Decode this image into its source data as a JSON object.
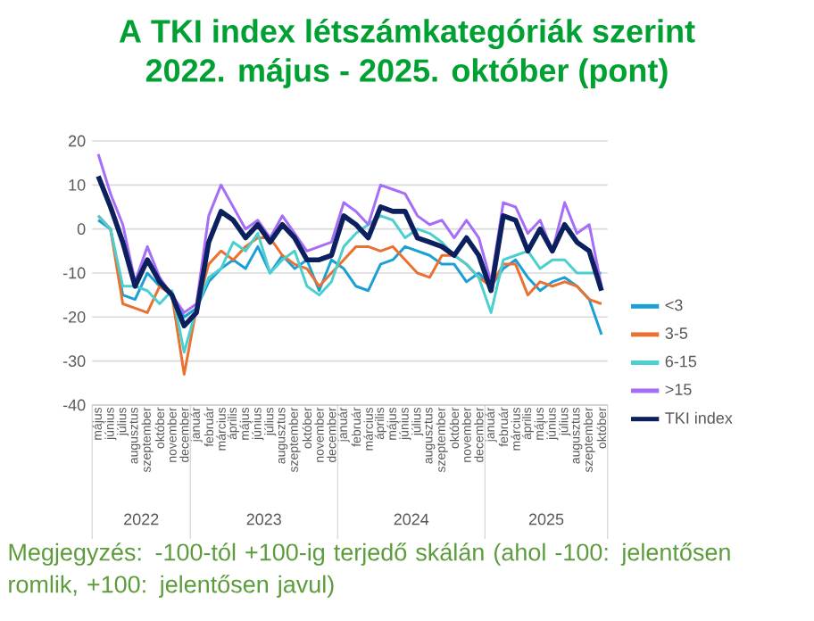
{
  "chart_data": {
    "type": "line",
    "title": "A TKI index létszámkategóriák szerint",
    "subtitle": "2022. május - 2025. október (pont)",
    "categories": [
      "május",
      "június",
      "július",
      "augusztus",
      "szeptember",
      "október",
      "november",
      "december",
      "január",
      "február",
      "március",
      "április",
      "május",
      "június",
      "július",
      "augusztus",
      "szeptember",
      "október",
      "november",
      "december",
      "január",
      "február",
      "március",
      "április",
      "május",
      "június",
      "július",
      "augusztus",
      "szeptember",
      "október",
      "november",
      "december",
      "január",
      "február",
      "március",
      "április",
      "május",
      "június",
      "július",
      "augusztus",
      "szeptember",
      "október"
    ],
    "series": [
      {
        "name": "<3",
        "color": "#1c9fd6",
        "values": [
          2,
          0,
          -15,
          -16,
          -10,
          -13,
          -15,
          -20,
          -18,
          -12,
          -9,
          -7,
          -9,
          -4,
          -10,
          -6,
          -9,
          -7,
          -14,
          -7,
          -9,
          -13,
          -14,
          -8,
          -7,
          -4,
          -5,
          -6,
          -8,
          -8,
          -12,
          -10,
          -13,
          -9,
          -7,
          -11,
          -14,
          -12,
          -11,
          -13,
          -16,
          -24
        ]
      },
      {
        "name": "3-5",
        "color": "#e97132",
        "values": [
          3,
          0,
          -17,
          -18,
          -19,
          -13,
          -15,
          -33,
          -18,
          -8,
          -5,
          -7,
          -4,
          -2,
          -2,
          -6,
          -8,
          -9,
          -13,
          -10,
          -7,
          -4,
          -4,
          -5,
          -4,
          -7,
          -10,
          -11,
          -6,
          -6,
          -8,
          -11,
          -13,
          -8,
          -8,
          -15,
          -12,
          -13,
          -12,
          -13,
          -16,
          -17
        ]
      },
      {
        "name": "6-15",
        "color": "#4ccfcf",
        "values": [
          3,
          0,
          -13,
          -13,
          -14,
          -17,
          -14,
          -28,
          -18,
          -11,
          -9,
          -3,
          -5,
          -1,
          -10,
          -7,
          -5,
          -13,
          -15,
          -12,
          -4,
          -1,
          1,
          3,
          2,
          -2,
          0,
          -1,
          -3,
          -6,
          -8,
          -11,
          -19,
          -7,
          -6,
          -5,
          -9,
          -7,
          -7,
          -10,
          -10,
          -10
        ]
      },
      {
        "name": ">15",
        "color": "#a66ef7",
        "values": [
          17,
          8,
          1,
          -12,
          -4,
          -11,
          -15,
          -19,
          -17,
          3,
          10,
          5,
          0,
          2,
          -2,
          3,
          -1,
          -5,
          -4,
          -3,
          6,
          4,
          1,
          10,
          9,
          8,
          3,
          1,
          2,
          -2,
          2,
          -2,
          -12,
          6,
          5,
          -1,
          2,
          -5,
          6,
          -1,
          1,
          -13
        ]
      },
      {
        "name": "TKI index",
        "color": "#0c1f5e",
        "values": [
          12,
          5,
          -3,
          -13,
          -7,
          -12,
          -15,
          -22,
          -19,
          -3,
          4,
          2,
          -2,
          1,
          -3,
          1,
          -2,
          -7,
          -7,
          -6,
          3,
          1,
          -2,
          5,
          4,
          4,
          -2,
          -3,
          -4,
          -6,
          -2,
          -6,
          -14,
          3,
          2,
          -5,
          0,
          -5,
          1,
          -3,
          -5,
          -14
        ]
      }
    ],
    "ylim": [
      -40,
      20
    ],
    "yticks": [
      -40,
      -30,
      -20,
      -10,
      0,
      10,
      20
    ],
    "grid": "y",
    "legend": "right",
    "marker": "none",
    "line_style": "solid",
    "annotations": [
      "2022",
      "2023",
      "2024",
      "2025",
      "Megjegyzés: -100-tól +100-ig terjedő skálán (ahol -100: jelentősen romlik, +100: jelentősen javul)"
    ]
  }
}
